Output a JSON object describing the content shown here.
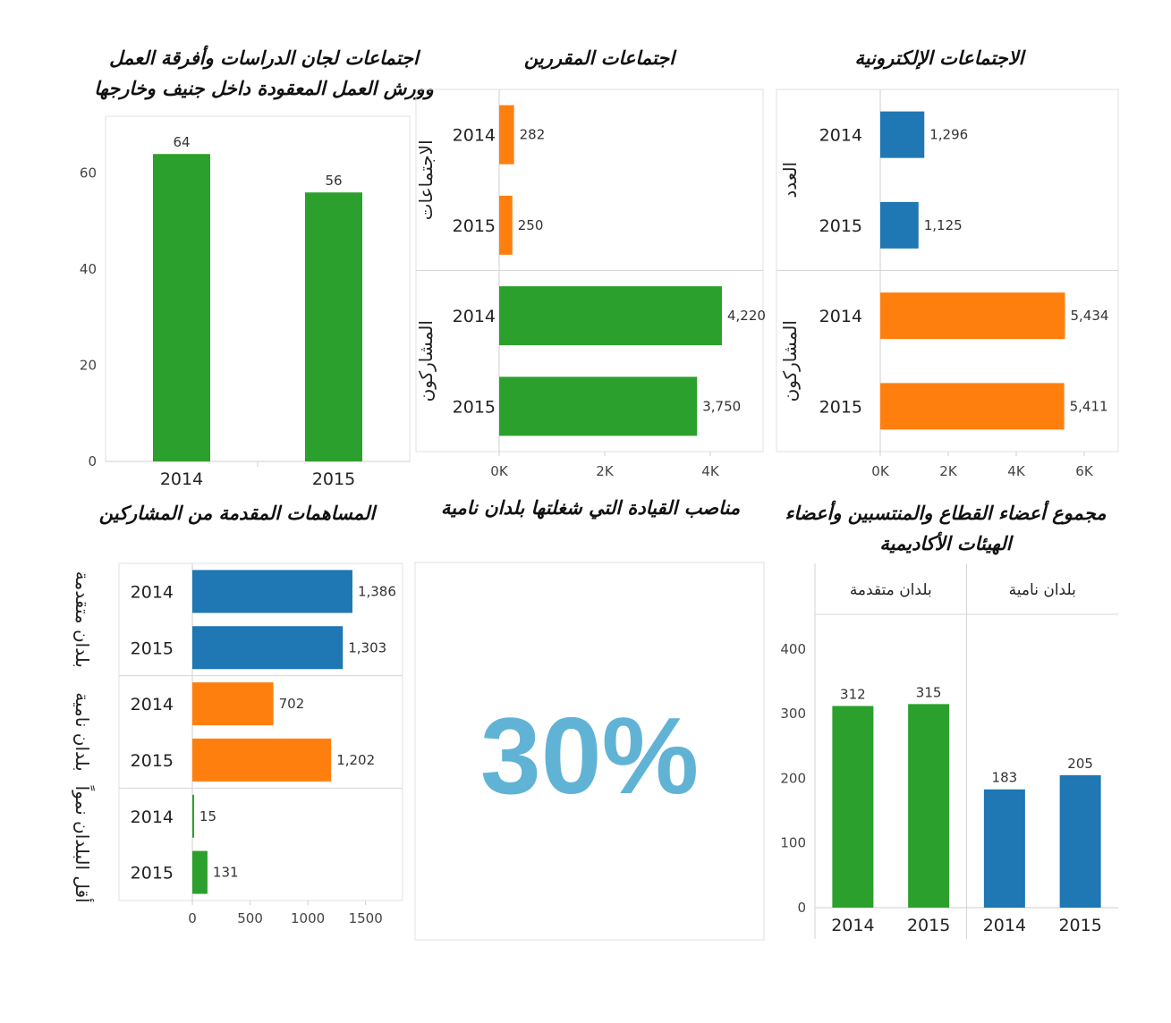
{
  "chart_data": [
    {
      "type": "bar",
      "title": "اجتماعات لجان الدراسات وأفرقة العمل وورش العمل المعقودة داخل جنيف وخارجها",
      "categories": [
        "2014",
        "2015"
      ],
      "values": [
        64,
        56
      ],
      "ylim": [
        0,
        70
      ],
      "yticks": [
        "0",
        "20",
        "40",
        "60"
      ],
      "color": "#2ca02c"
    },
    {
      "type": "bar",
      "orientation": "horizontal",
      "title": "اجتماعات المقررين",
      "groups": [
        {
          "label": "الاجتماعات",
          "years": [
            "2014",
            "2015"
          ],
          "values": [
            282,
            250
          ],
          "data_labels": [
            "282",
            "250"
          ],
          "color": "#ff7f0e"
        },
        {
          "label": "المشاركون",
          "years": [
            "2014",
            "2015"
          ],
          "values": [
            4220,
            3750
          ],
          "data_labels": [
            "4,220",
            "3,750"
          ],
          "color": "#2ca02c"
        }
      ],
      "xlim": [
        0,
        5000
      ],
      "xticks": [
        "0K",
        "2K",
        "4K"
      ]
    },
    {
      "type": "bar",
      "orientation": "horizontal",
      "title": "الاجتماعات الإلكترونية",
      "groups": [
        {
          "label": "العدد",
          "years": [
            "2014",
            "2015"
          ],
          "values": [
            1296,
            1125
          ],
          "data_labels": [
            "1,296",
            "1,125"
          ],
          "color": "#1f77b4"
        },
        {
          "label": "المشاركون",
          "years": [
            "2014",
            "2015"
          ],
          "values": [
            5434,
            5411
          ],
          "data_labels": [
            "5,434",
            "5,411"
          ],
          "color": "#ff7f0e"
        }
      ],
      "xlim": [
        0,
        7000
      ],
      "xticks": [
        "0K",
        "2K",
        "4K",
        "6K"
      ]
    },
    {
      "type": "bar",
      "orientation": "horizontal",
      "title": "المساهمات المقدمة من المشاركين",
      "groups": [
        {
          "label": "بلدان متقدمة",
          "years": [
            "2014",
            "2015"
          ],
          "values": [
            1386,
            1303
          ],
          "data_labels": [
            "1,386",
            "1,303"
          ],
          "color": "#1f77b4"
        },
        {
          "label": "بلدان نامية",
          "years": [
            "2014",
            "2015"
          ],
          "values": [
            702,
            1202
          ],
          "data_labels": [
            "702",
            "1,202"
          ],
          "color": "#ff7f0e"
        },
        {
          "label": "أقل البلدان نمواً",
          "years": [
            "2014",
            "2015"
          ],
          "values": [
            15,
            131
          ],
          "data_labels": [
            "15",
            "131"
          ],
          "color": "#2ca02c"
        }
      ],
      "xlim": [
        0,
        1820
      ],
      "xticks": [
        "0",
        "500",
        "1000",
        "1500"
      ]
    },
    {
      "type": "table",
      "title": "مناصب القيادة التي شغلتها بلدان نامية",
      "value": "30%",
      "color": "#61b3d6"
    },
    {
      "type": "bar",
      "title": "مجموع أعضاء القطاع والمنتسبين وأعضاء الهيئات الأكاديمية",
      "groups": [
        {
          "label": "بلدان متقدمة",
          "years": [
            "2014",
            "2015"
          ],
          "values": [
            312,
            315
          ],
          "data_labels": [
            "312",
            "315"
          ],
          "color": "#2ca02c"
        },
        {
          "label": "بلدان نامية",
          "years": [
            "2014",
            "2015"
          ],
          "values": [
            183,
            205
          ],
          "data_labels": [
            "183",
            "205"
          ],
          "color": "#1f77b4"
        }
      ],
      "ylim": [
        0,
        440
      ],
      "yticks": [
        "0",
        "100",
        "200",
        "300",
        "400"
      ]
    }
  ]
}
